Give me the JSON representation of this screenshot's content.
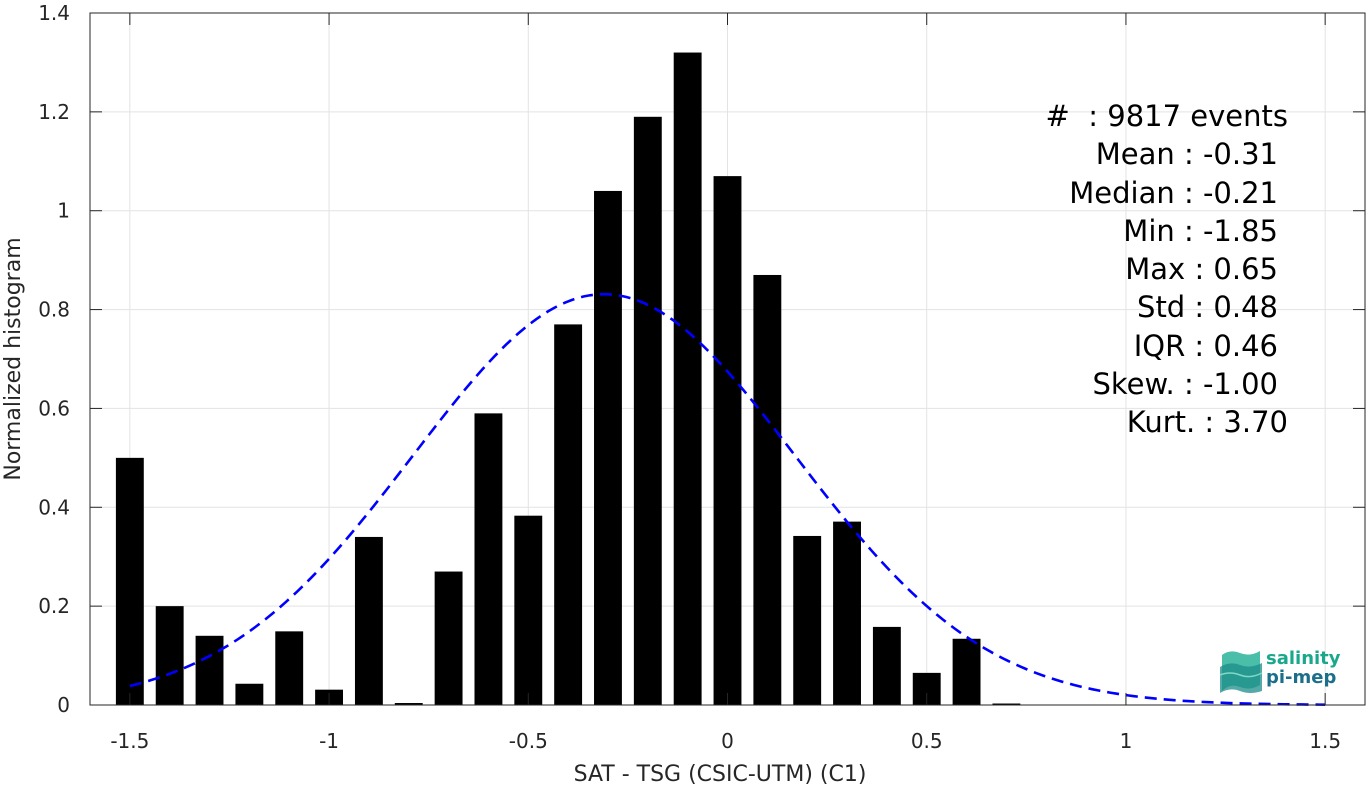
{
  "chart_data": {
    "type": "bar",
    "xlabel": "SAT - TSG (CSIC-UTM) (C1)",
    "ylabel": "Normalized histogram",
    "xlim": [
      -1.6,
      1.6
    ],
    "ylim": [
      0,
      1.4
    ],
    "xticks": [
      -1.5,
      -1,
      -0.5,
      0,
      0.5,
      1,
      1.5
    ],
    "xtick_labels": [
      "-1.5",
      "-1",
      "-0.5",
      "0",
      "0.5",
      "1",
      "1.5"
    ],
    "yticks": [
      0,
      0.2,
      0.4,
      0.6,
      0.8,
      1,
      1.2,
      1.4
    ],
    "ytick_labels": [
      "0",
      "0.2",
      "0.4",
      "0.6",
      "0.8",
      "1",
      "1.2",
      "1.4"
    ],
    "grid": true,
    "bar_width": 0.07,
    "bars": {
      "x": [
        -1.5,
        -1.4,
        -1.3,
        -1.2,
        -1.1,
        -1.0,
        -0.9,
        -0.8,
        -0.7,
        -0.6,
        -0.5,
        -0.4,
        -0.3,
        -0.2,
        -0.1,
        0.0,
        0.1,
        0.2,
        0.3,
        0.4,
        0.5,
        0.6,
        0.7
      ],
      "values": [
        0.5,
        0.2,
        0.14,
        0.043,
        0.149,
        0.031,
        0.34,
        0.004,
        0.27,
        0.59,
        0.383,
        0.77,
        1.04,
        1.19,
        1.32,
        1.07,
        0.87,
        0.342,
        0.371,
        0.158,
        0.065,
        0.134,
        0.003
      ],
      "color": "#000000"
    },
    "fit_curve": {
      "style": "dashed",
      "color": "#0000ff",
      "mean": -0.31,
      "std": 0.48,
      "x_range": [
        -1.5,
        1.5
      ]
    },
    "annotation_lines": [
      "#  : 9817 events",
      "Mean : -0.31",
      "Median : -0.21",
      "Min : -1.85",
      "Max : 0.65",
      "Std : 0.48",
      "IQR : 0.46",
      "Skew. : -1.00",
      "Kurt. : 3.70"
    ]
  },
  "logo": {
    "line1": "salinity",
    "line2": "pi-mep",
    "color1": "#1aa88c",
    "color2": "#1b6f8a"
  }
}
